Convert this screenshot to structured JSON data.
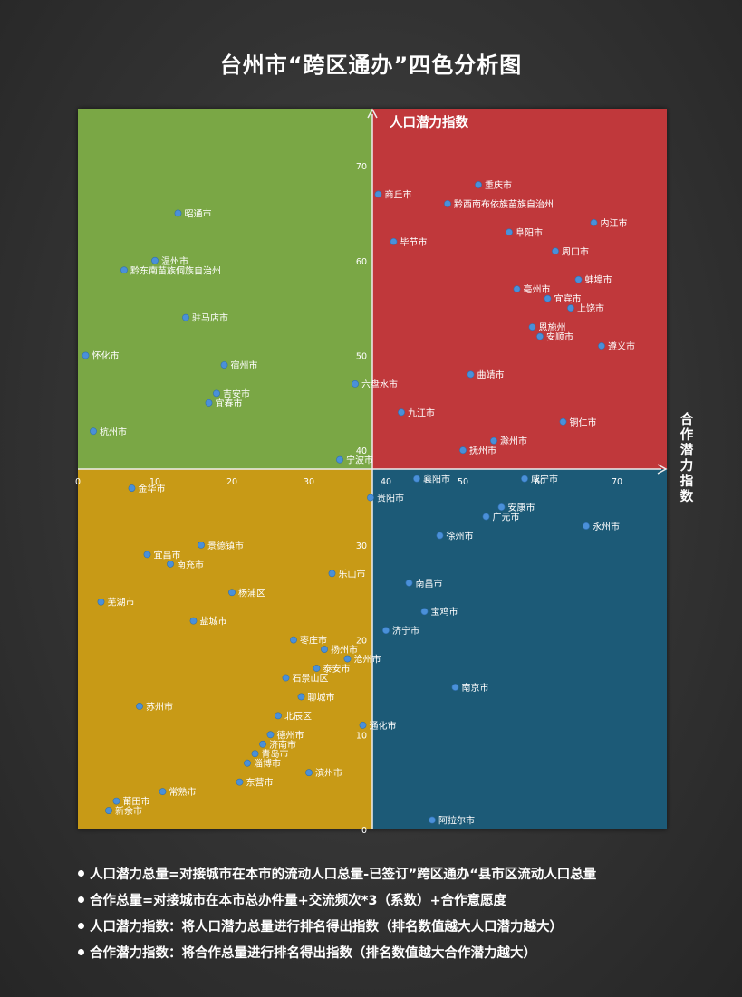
{
  "title": "台州市“跨区通办”四色分析图",
  "notes": [
    "人口潜力总量=对接城市在本市的流动人口总量-已签订”跨区通办“县市区流动人口总量",
    "合作总量=对接城市在本市总办件量+交流频次*3（系数）+合作意愿度",
    "人口潜力指数：将人口潜力总量进行排名得出指数（排名数值越大人口潜力越大）",
    "合作潜力指数：将合作总量进行排名得出指数（排名数值越大合作潜力越大）"
  ],
  "colors": {
    "top_left": "#7aa744",
    "top_right": "#c0393a",
    "bottom_left": "#c89a18",
    "bottom_right": "#1b5a77",
    "point": "#4a90d9"
  },
  "chart_data": {
    "type": "scatter",
    "title": "台州市“跨区通办”四色分析图",
    "xlabel": "合作潜力指数",
    "ylabel": "人口潜力指数",
    "grid": false,
    "x_ticks": [
      0,
      10,
      20,
      30,
      40,
      50,
      60,
      70
    ],
    "y_ticks": [
      0,
      10,
      20,
      30,
      40,
      50,
      60,
      70
    ],
    "points": [
      {
        "label": "重庆市",
        "x": 52,
        "y": 68
      },
      {
        "label": "商丘市",
        "x": 39,
        "y": 67
      },
      {
        "label": "黔西南布依族苗族自治州",
        "x": 48,
        "y": 66
      },
      {
        "label": "内江市",
        "x": 67,
        "y": 64
      },
      {
        "label": "阜阳市",
        "x": 56,
        "y": 63
      },
      {
        "label": "毕节市",
        "x": 41,
        "y": 62
      },
      {
        "label": "周口市",
        "x": 62,
        "y": 61
      },
      {
        "label": "蚌埠市",
        "x": 65,
        "y": 58
      },
      {
        "label": "亳州市",
        "x": 57,
        "y": 57
      },
      {
        "label": "宜宾市",
        "x": 61,
        "y": 56
      },
      {
        "label": "上饶市",
        "x": 64,
        "y": 55
      },
      {
        "label": "恩施州",
        "x": 59,
        "y": 53
      },
      {
        "label": "安顺市",
        "x": 60,
        "y": 52
      },
      {
        "label": "遵义市",
        "x": 68,
        "y": 51
      },
      {
        "label": "曲靖市",
        "x": 51,
        "y": 48
      },
      {
        "label": "九江市",
        "x": 42,
        "y": 44
      },
      {
        "label": "铜仁市",
        "x": 63,
        "y": 43
      },
      {
        "label": "滁州市",
        "x": 54,
        "y": 41
      },
      {
        "label": "抚州市",
        "x": 50,
        "y": 40
      },
      {
        "label": "襄阳市",
        "x": 44,
        "y": 37
      },
      {
        "label": "昭通市",
        "x": 13,
        "y": 65
      },
      {
        "label": "温州市",
        "x": 10,
        "y": 60
      },
      {
        "label": "黔东南苗族侗族自治州",
        "x": 6,
        "y": 59
      },
      {
        "label": "驻马店市",
        "x": 14,
        "y": 54
      },
      {
        "label": "怀化市",
        "x": 1,
        "y": 50
      },
      {
        "label": "宿州市",
        "x": 19,
        "y": 49
      },
      {
        "label": "六盘水市",
        "x": 36,
        "y": 47
      },
      {
        "label": "吉安市",
        "x": 18,
        "y": 46
      },
      {
        "label": "宜春市",
        "x": 17,
        "y": 45
      },
      {
        "label": "杭州市",
        "x": 2,
        "y": 42
      },
      {
        "label": "宁波市",
        "x": 34,
        "y": 39
      },
      {
        "label": "咸宁市",
        "x": 58,
        "y": 37
      },
      {
        "label": "贵阳市",
        "x": 38,
        "y": 35
      },
      {
        "label": "安康市",
        "x": 55,
        "y": 34
      },
      {
        "label": "广元市",
        "x": 53,
        "y": 33
      },
      {
        "label": "永州市",
        "x": 66,
        "y": 32
      },
      {
        "label": "徐州市",
        "x": 47,
        "y": 31
      },
      {
        "label": "南昌市",
        "x": 43,
        "y": 26
      },
      {
        "label": "宝鸡市",
        "x": 45,
        "y": 23
      },
      {
        "label": "济宁市",
        "x": 40,
        "y": 21
      },
      {
        "label": "南京市",
        "x": 49,
        "y": 15
      },
      {
        "label": "阿拉尔市",
        "x": 46,
        "y": 1
      },
      {
        "label": "金华市",
        "x": 7,
        "y": 36
      },
      {
        "label": "景德镇市",
        "x": 16,
        "y": 30
      },
      {
        "label": "宜昌市",
        "x": 9,
        "y": 29
      },
      {
        "label": "南充市",
        "x": 12,
        "y": 28
      },
      {
        "label": "乐山市",
        "x": 33,
        "y": 27
      },
      {
        "label": "杨浦区",
        "x": 20,
        "y": 25
      },
      {
        "label": "芜湖市",
        "x": 3,
        "y": 24
      },
      {
        "label": "盐城市",
        "x": 15,
        "y": 22
      },
      {
        "label": "枣庄市",
        "x": 28,
        "y": 20
      },
      {
        "label": "扬州市",
        "x": 32,
        "y": 19
      },
      {
        "label": "沧州市",
        "x": 35,
        "y": 18
      },
      {
        "label": "泰安市",
        "x": 31,
        "y": 17
      },
      {
        "label": "石景山区",
        "x": 27,
        "y": 16
      },
      {
        "label": "聊城市",
        "x": 29,
        "y": 14
      },
      {
        "label": "苏州市",
        "x": 8,
        "y": 13
      },
      {
        "label": "北辰区",
        "x": 26,
        "y": 12
      },
      {
        "label": "通化市",
        "x": 37,
        "y": 11
      },
      {
        "label": "德州市",
        "x": 25,
        "y": 10
      },
      {
        "label": "济南市",
        "x": 24,
        "y": 9
      },
      {
        "label": "青岛市",
        "x": 23,
        "y": 8
      },
      {
        "label": "淄博市",
        "x": 22,
        "y": 7
      },
      {
        "label": "滨州市",
        "x": 30,
        "y": 6
      },
      {
        "label": "东营市",
        "x": 21,
        "y": 5
      },
      {
        "label": "常熟市",
        "x": 11,
        "y": 4
      },
      {
        "label": "莆田市",
        "x": 5,
        "y": 3
      },
      {
        "label": "新余市",
        "x": 4,
        "y": 2
      }
    ]
  }
}
